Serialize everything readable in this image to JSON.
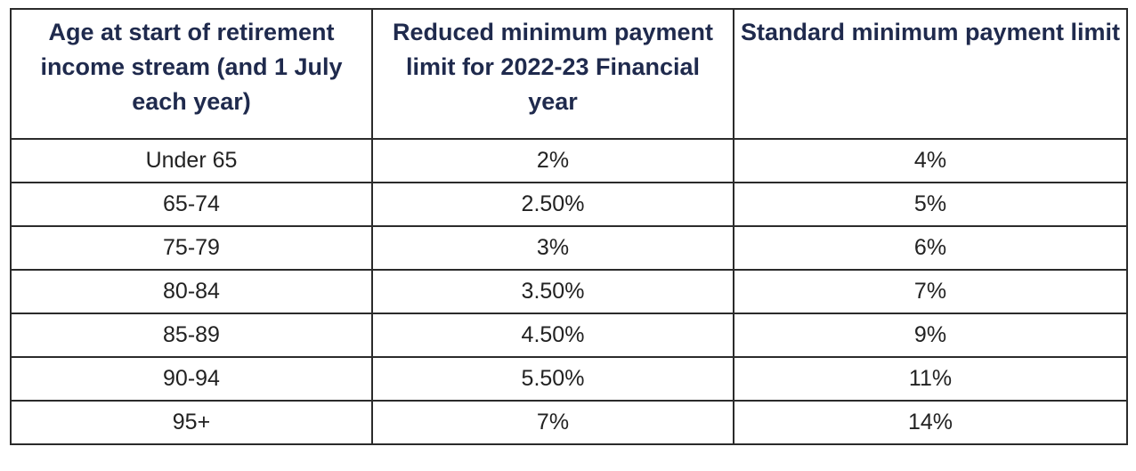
{
  "table": {
    "headers": [
      "Age at start of retirement income stream (and 1 July each year)",
      "Reduced minimum payment limit for 2022-23 Financial year",
      "Standard minimum payment limit"
    ],
    "rows": [
      [
        "Under 65",
        "2%",
        "4%"
      ],
      [
        "65-74",
        "2.50%",
        "5%"
      ],
      [
        "75-79",
        "3%",
        "6%"
      ],
      [
        "80-84",
        "3.50%",
        "7%"
      ],
      [
        "85-89",
        "4.50%",
        "9%"
      ],
      [
        "90-94",
        "5.50%",
        "11%"
      ],
      [
        "95+",
        "7%",
        "14%"
      ]
    ]
  },
  "colors": {
    "header_text": "#1f2a4d",
    "body_text": "#222222",
    "border": "#2b2b2b"
  }
}
